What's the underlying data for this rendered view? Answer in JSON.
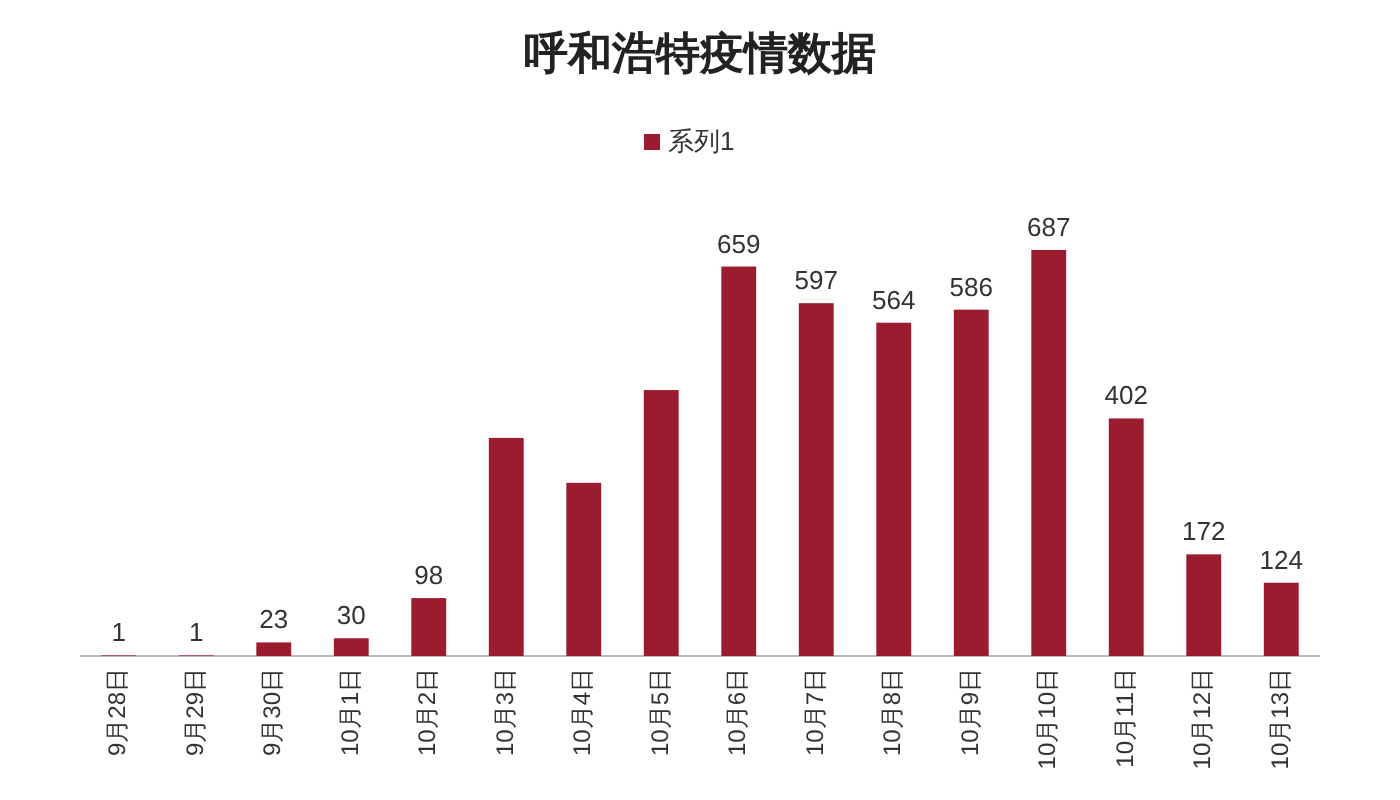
{
  "chart_data": {
    "type": "bar",
    "title": "呼和浩特疫情数据",
    "categories": [
      "9月28日",
      "9月29日",
      "9月30日",
      "10月1日",
      "10月2日",
      "10月3日",
      "10月4日",
      "10月5日",
      "10月6日",
      "10月7日",
      "10月8日",
      "10月9日",
      "10月10日",
      "10月11日",
      "10月12日",
      "10月13日"
    ],
    "series": [
      {
        "name": "系列1",
        "color": "#9b1c2e",
        "values": [
          1,
          1,
          23,
          30,
          98,
          369,
          293,
          450,
          659,
          597,
          564,
          586,
          687,
          402,
          172,
          124
        ],
        "value_labels": [
          "1",
          "1",
          "23",
          "30",
          "98",
          null,
          null,
          null,
          "659",
          "597",
          "564",
          "586",
          "687",
          "402",
          "172",
          "124"
        ]
      }
    ],
    "legend": "top"
  }
}
